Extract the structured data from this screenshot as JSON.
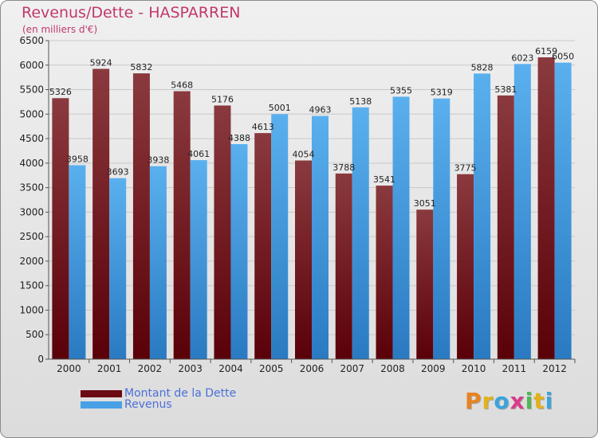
{
  "header": {
    "title": "Revenus/Dette - HASPARREN",
    "subtitle": "(en milliers d'€)"
  },
  "legend": {
    "items": [
      {
        "label": "Montant de la Dette",
        "color": "#6b0a12"
      },
      {
        "label": "Revenus",
        "color": "#4aa0e6"
      }
    ]
  },
  "logo": {
    "text": "Proxiti"
  },
  "colors": {
    "debt_top": "#8a3a3e",
    "debt_bottom": "#5a0008",
    "rev_top": "#5ab0ee",
    "rev_bottom": "#2a7ac2",
    "title": "#c0386e",
    "legend_text": "#4a6fd8"
  },
  "chart_data": {
    "type": "bar",
    "title": "Revenus/Dette - HASPARREN",
    "subtitle": "(en milliers d'€)",
    "categories": [
      "2000",
      "2001",
      "2002",
      "2003",
      "2004",
      "2005",
      "2006",
      "2007",
      "2008",
      "2009",
      "2010",
      "2011",
      "2012"
    ],
    "series": [
      {
        "name": "Montant de la Dette",
        "values": [
          5326,
          5924,
          5832,
          5468,
          5176,
          4613,
          4054,
          3788,
          3541,
          3051,
          3775,
          5381,
          6159
        ],
        "labels": [
          "5326",
          "5924",
          "5832",
          "5468",
          "5176",
          "4613",
          "4054",
          "3788",
          "3541",
          "3051",
          "3775",
          "5381",
          "6159"
        ]
      },
      {
        "name": "Revenus",
        "values": [
          3958,
          3693,
          3938,
          4061,
          4388,
          5001,
          4963,
          5138,
          5355,
          5319,
          5828,
          6023,
          6050
        ],
        "labels": [
          "3958",
          "3693",
          "3938",
          "4061",
          "4388",
          "5001",
          "4963",
          "5138",
          "5355",
          "5319",
          "5828",
          "6023",
          "6050"
        ]
      }
    ],
    "ylim": [
      0,
      6500
    ],
    "yticks": [
      0,
      500,
      1000,
      1500,
      2000,
      2500,
      3000,
      3500,
      4000,
      4500,
      5000,
      5500,
      6000,
      6500
    ],
    "grid": true,
    "legend_position": "bottom-left"
  }
}
